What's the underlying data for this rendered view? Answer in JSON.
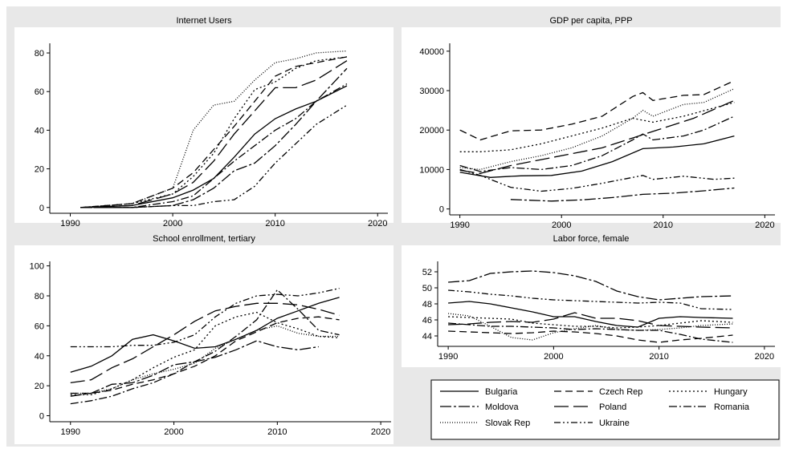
{
  "styles": {
    "background": "#e8e8e8",
    "plot_background": "#ffffff",
    "line_color": "#000000"
  },
  "legend": {
    "placement": "bottom-right",
    "entries": [
      {
        "name": "Bulgaria",
        "dash": "solid"
      },
      {
        "name": "Czech Rep",
        "dash": "dash"
      },
      {
        "name": "Hungary",
        "dash": "dot"
      },
      {
        "name": "Moldova",
        "dash": "dashdot-long"
      },
      {
        "name": "Poland",
        "dash": "longdash"
      },
      {
        "name": "Romania",
        "dash": "dashdot"
      },
      {
        "name": "Slovak Rep",
        "dash": "dense-dot"
      },
      {
        "name": "Ukraine",
        "dash": "dash-dot-dot"
      }
    ]
  },
  "chart_data": [
    {
      "type": "line",
      "title": "Internet Users",
      "xlim": [
        1988,
        2021
      ],
      "ylim": [
        -3,
        85
      ],
      "xticks": [
        1990,
        2000,
        2010,
        2020
      ],
      "yticks": [
        0,
        20,
        40,
        60,
        80
      ],
      "series": [
        {
          "name": "Bulgaria",
          "x": [
            1991,
            1996,
            2000,
            2002,
            2004,
            2006,
            2008,
            2010,
            2012,
            2014,
            2017
          ],
          "y": [
            0,
            1,
            5,
            9,
            15,
            26,
            38,
            46,
            51,
            55,
            63
          ]
        },
        {
          "name": "Czech Rep",
          "x": [
            1991,
            1996,
            2000,
            2002,
            2004,
            2006,
            2008,
            2010,
            2012,
            2014,
            2017
          ],
          "y": [
            0,
            2,
            10,
            18,
            30,
            42,
            55,
            68,
            73,
            75,
            78
          ]
        },
        {
          "name": "Hungary",
          "x": [
            1991,
            1996,
            2000,
            2002,
            2004,
            2006,
            2008,
            2010,
            2012,
            2014,
            2017
          ],
          "y": [
            0,
            2,
            7,
            16,
            28,
            46,
            61,
            65,
            72,
            76,
            78
          ]
        },
        {
          "name": "Moldova",
          "x": [
            1991,
            1996,
            2000,
            2002,
            2004,
            2006,
            2008,
            2010,
            2012,
            2014,
            2017
          ],
          "y": [
            0,
            0,
            1,
            4,
            10,
            19,
            23,
            32,
            43,
            55,
            72
          ]
        },
        {
          "name": "Poland",
          "x": [
            1991,
            1996,
            2000,
            2002,
            2004,
            2006,
            2008,
            2010,
            2012,
            2014,
            2017
          ],
          "y": [
            0,
            1,
            7,
            13,
            24,
            38,
            50,
            62,
            62,
            66,
            76
          ]
        },
        {
          "name": "Romania",
          "x": [
            1991,
            1996,
            2000,
            2002,
            2004,
            2006,
            2008,
            2010,
            2012,
            2014,
            2017
          ],
          "y": [
            0,
            0,
            3,
            6,
            15,
            24,
            32,
            40,
            46,
            55,
            64
          ]
        },
        {
          "name": "Slovak Rep",
          "x": [
            1991,
            1996,
            2000,
            2002,
            2004,
            2006,
            2008,
            2010,
            2012,
            2014,
            2017
          ],
          "y": [
            0,
            2,
            10,
            40,
            53,
            55,
            66,
            75,
            77,
            80,
            81
          ]
        },
        {
          "name": "Ukraine",
          "x": [
            1991,
            1996,
            2000,
            2002,
            2004,
            2006,
            2008,
            2010,
            2012,
            2014,
            2017
          ],
          "y": [
            0,
            0,
            1,
            1,
            3,
            4,
            11,
            23,
            33,
            43,
            53
          ]
        }
      ]
    },
    {
      "type": "line",
      "title": "GDP per capita, PPP",
      "xlim": [
        1989,
        2021
      ],
      "ylim": [
        -1500,
        42000
      ],
      "xticks": [
        1990,
        2000,
        2010,
        2020
      ],
      "yticks": [
        0,
        10000,
        20000,
        30000,
        40000
      ],
      "series": [
        {
          "name": "Bulgaria",
          "x": [
            1990,
            1993,
            1996,
            1999,
            2002,
            2005,
            2008,
            2011,
            2014,
            2017
          ],
          "y": [
            9300,
            8000,
            8400,
            8500,
            9600,
            12000,
            15300,
            15700,
            16500,
            18500
          ]
        },
        {
          "name": "Czech Rep",
          "x": [
            1990,
            1992,
            1995,
            1998,
            2001,
            2004,
            2007,
            2008,
            2009,
            2012,
            2014,
            2017
          ],
          "y": [
            20000,
            17500,
            19800,
            20000,
            21500,
            23500,
            28500,
            29500,
            27500,
            28800,
            29000,
            32500
          ]
        },
        {
          "name": "Hungary",
          "x": [
            1990,
            1992,
            1995,
            1998,
            2001,
            2004,
            2007,
            2009,
            2012,
            2017
          ],
          "y": [
            14500,
            14500,
            15000,
            16500,
            18500,
            20500,
            23000,
            22000,
            23500,
            27000
          ]
        },
        {
          "name": "Moldova",
          "x": [
            1995,
            1997,
            1999,
            2002,
            2005,
            2008,
            2011,
            2014,
            2017
          ],
          "y": [
            2400,
            2200,
            2000,
            2300,
            2900,
            3700,
            4000,
            4600,
            5300
          ]
        },
        {
          "name": "Poland",
          "x": [
            1990,
            1992,
            1995,
            1998,
            2001,
            2004,
            2007,
            2010,
            2013,
            2017
          ],
          "y": [
            9800,
            9000,
            11000,
            12500,
            14000,
            15500,
            18000,
            20500,
            23000,
            27500
          ]
        },
        {
          "name": "Romania",
          "x": [
            1990,
            1992,
            1995,
            1998,
            2001,
            2004,
            2007,
            2008,
            2009,
            2012,
            2014,
            2017
          ],
          "y": [
            11000,
            9500,
            10500,
            10000,
            11000,
            13500,
            17500,
            19000,
            17500,
            18500,
            20000,
            23500
          ]
        },
        {
          "name": "Slovak Rep",
          "x": [
            1990,
            1992,
            1995,
            1998,
            2001,
            2004,
            2007,
            2008,
            2009,
            2012,
            2014,
            2017
          ],
          "y": [
            10500,
            10000,
            12000,
            13500,
            15500,
            18500,
            23000,
            25000,
            23500,
            26500,
            27000,
            30500
          ]
        },
        {
          "name": "Ukraine",
          "x": [
            1990,
            1992,
            1995,
            1998,
            2001,
            2004,
            2007,
            2008,
            2009,
            2012,
            2015,
            2017
          ],
          "y": [
            10000,
            8500,
            5500,
            4500,
            5200,
            6500,
            8000,
            8500,
            7500,
            8300,
            7500,
            7800
          ]
        }
      ]
    },
    {
      "type": "line",
      "title": "School enrollment, tertiary",
      "xlim": [
        1988,
        2021
      ],
      "ylim": [
        -4,
        103
      ],
      "xticks": [
        1990,
        2000,
        2010,
        2020
      ],
      "yticks": [
        0,
        20,
        40,
        60,
        80,
        100
      ],
      "series": [
        {
          "name": "Bulgaria",
          "x": [
            1990,
            1992,
            1994,
            1996,
            1998,
            2000,
            2002,
            2004,
            2006,
            2008,
            2010,
            2012,
            2014,
            2016
          ],
          "y": [
            29,
            33,
            40,
            51,
            54,
            50,
            45,
            46,
            51,
            57,
            65,
            70,
            75,
            79
          ]
        },
        {
          "name": "Czech Rep",
          "x": [
            1990,
            1992,
            1994,
            1996,
            1998,
            2000,
            2002,
            2004,
            2006,
            2008,
            2010,
            2012,
            2014,
            2016
          ],
          "y": [
            15,
            15,
            17,
            21,
            24,
            28,
            33,
            40,
            50,
            56,
            62,
            65,
            66,
            64
          ]
        },
        {
          "name": "Hungary",
          "x": [
            1990,
            1992,
            1994,
            1996,
            1998,
            2000,
            2002,
            2004,
            2006,
            2008,
            2010,
            2012,
            2014,
            2016
          ],
          "y": [
            14,
            14,
            18,
            24,
            32,
            39,
            44,
            60,
            66,
            69,
            62,
            58,
            53,
            52
          ]
        },
        {
          "name": "Moldova",
          "x": [
            1990,
            1992,
            1994,
            1996,
            1998,
            2000,
            2002,
            2004,
            2006,
            2008,
            2010,
            2012,
            2014
          ],
          "y": [
            13,
            15,
            21,
            22,
            27,
            34,
            36,
            39,
            44,
            50,
            46,
            44,
            46
          ]
        },
        {
          "name": "Poland",
          "x": [
            1990,
            1992,
            1994,
            1996,
            1998,
            2000,
            2002,
            2004,
            2006,
            2008,
            2010,
            2012,
            2014,
            2016
          ],
          "y": [
            22,
            24,
            32,
            38,
            46,
            54,
            63,
            70,
            73,
            75,
            75,
            74,
            71,
            67
          ]
        },
        {
          "name": "Romania",
          "x": [
            1990,
            1992,
            1994,
            1996,
            1998,
            2000,
            2002,
            2004,
            2006,
            2008,
            2010,
            2012,
            2014,
            2016
          ],
          "y": [
            8,
            10,
            13,
            18,
            22,
            28,
            36,
            43,
            53,
            64,
            84,
            71,
            57,
            54
          ]
        },
        {
          "name": "Slovak Rep",
          "x": [
            1990,
            1992,
            1994,
            1996,
            1998,
            2000,
            2002,
            2004,
            2006,
            2008,
            2010,
            2012,
            2014,
            2016
          ],
          "y": [
            15,
            15,
            18,
            24,
            28,
            31,
            35,
            45,
            51,
            57,
            60,
            55,
            53,
            53
          ]
        },
        {
          "name": "Ukraine",
          "x": [
            1990,
            1992,
            1994,
            1996,
            1998,
            2000,
            2002,
            2004,
            2006,
            2008,
            2010,
            2012,
            2014,
            2016
          ],
          "y": [
            46,
            46,
            46,
            47,
            47,
            49,
            54,
            66,
            75,
            80,
            81,
            80,
            82,
            85
          ]
        }
      ]
    },
    {
      "type": "line",
      "title": "Labor force, female",
      "xlim": [
        1989,
        2021
      ],
      "ylim": [
        42.7,
        53.3
      ],
      "xticks": [
        1990,
        2000,
        2010,
        2020
      ],
      "yticks": [
        44,
        46,
        48,
        50,
        52
      ],
      "series": [
        {
          "name": "Bulgaria",
          "x": [
            1990,
            1992,
            1994,
            1996,
            1998,
            2000,
            2002,
            2004,
            2006,
            2008,
            2010,
            2012,
            2014,
            2017
          ],
          "y": [
            48.1,
            48.3,
            48.0,
            47.5,
            47.0,
            46.4,
            46.4,
            45.8,
            45.3,
            45.1,
            46.2,
            46.4,
            46.3,
            46.2
          ]
        },
        {
          "name": "Czech Rep",
          "x": [
            1990,
            1992,
            1994,
            1996,
            1998,
            2000,
            2002,
            2004,
            2006,
            2008,
            2010,
            2012,
            2014,
            2017
          ],
          "y": [
            44.6,
            44.5,
            44.4,
            44.3,
            44.4,
            44.6,
            44.5,
            44.3,
            44.0,
            43.5,
            43.2,
            43.5,
            43.7,
            44.1
          ]
        },
        {
          "name": "Hungary",
          "x": [
            1990,
            1992,
            1994,
            1996,
            1998,
            2000,
            2002,
            2004,
            2006,
            2008,
            2010,
            2012,
            2014,
            2017
          ],
          "y": [
            46.4,
            46.3,
            46.2,
            46.1,
            45.6,
            45.4,
            45.2,
            45.2,
            45.0,
            45.1,
            45.3,
            45.6,
            45.9,
            45.7
          ]
        },
        {
          "name": "Moldova",
          "x": [
            1990,
            1992,
            1994,
            1996,
            1998,
            2000,
            2002,
            2004,
            2006,
            2008,
            2010,
            2012,
            2014,
            2017
          ],
          "y": [
            50.7,
            50.9,
            51.8,
            52.0,
            52.1,
            51.9,
            51.5,
            50.8,
            49.6,
            48.9,
            48.5,
            48.7,
            48.9,
            49.0
          ]
        },
        {
          "name": "Poland",
          "x": [
            1990,
            1992,
            1994,
            1996,
            1998,
            2000,
            2002,
            2004,
            2006,
            2008,
            2010,
            2012,
            2014,
            2017
          ],
          "y": [
            45.4,
            45.5,
            45.7,
            45.8,
            45.7,
            46.1,
            46.9,
            46.2,
            46.2,
            45.9,
            45.3,
            45.2,
            45.1,
            45.0
          ]
        },
        {
          "name": "Romania",
          "x": [
            1990,
            1992,
            1994,
            1996,
            1998,
            2000,
            2002,
            2004,
            2006,
            2008,
            2010,
            2012,
            2014,
            2017
          ],
          "y": [
            45.6,
            45.4,
            45.2,
            45.2,
            45.1,
            45.0,
            44.8,
            44.9,
            44.8,
            44.7,
            44.7,
            44.2,
            43.6,
            43.2
          ]
        },
        {
          "name": "Slovak Rep",
          "x": [
            1990,
            1992,
            1994,
            1996,
            1998,
            2000,
            2002,
            2004,
            2006,
            2008,
            2010,
            2012,
            2014,
            2017
          ],
          "y": [
            46.8,
            46.5,
            45.2,
            43.8,
            43.5,
            44.4,
            44.9,
            45.3,
            44.8,
            44.7,
            44.8,
            45.0,
            45.3,
            45.5
          ]
        },
        {
          "name": "Ukraine",
          "x": [
            1990,
            1992,
            1994,
            1996,
            1998,
            2000,
            2002,
            2004,
            2006,
            2008,
            2010,
            2012,
            2014,
            2017
          ],
          "y": [
            49.7,
            49.5,
            49.2,
            49.0,
            48.7,
            48.5,
            48.4,
            48.3,
            48.2,
            48.1,
            48.2,
            48.1,
            47.4,
            47.3
          ]
        }
      ]
    }
  ]
}
